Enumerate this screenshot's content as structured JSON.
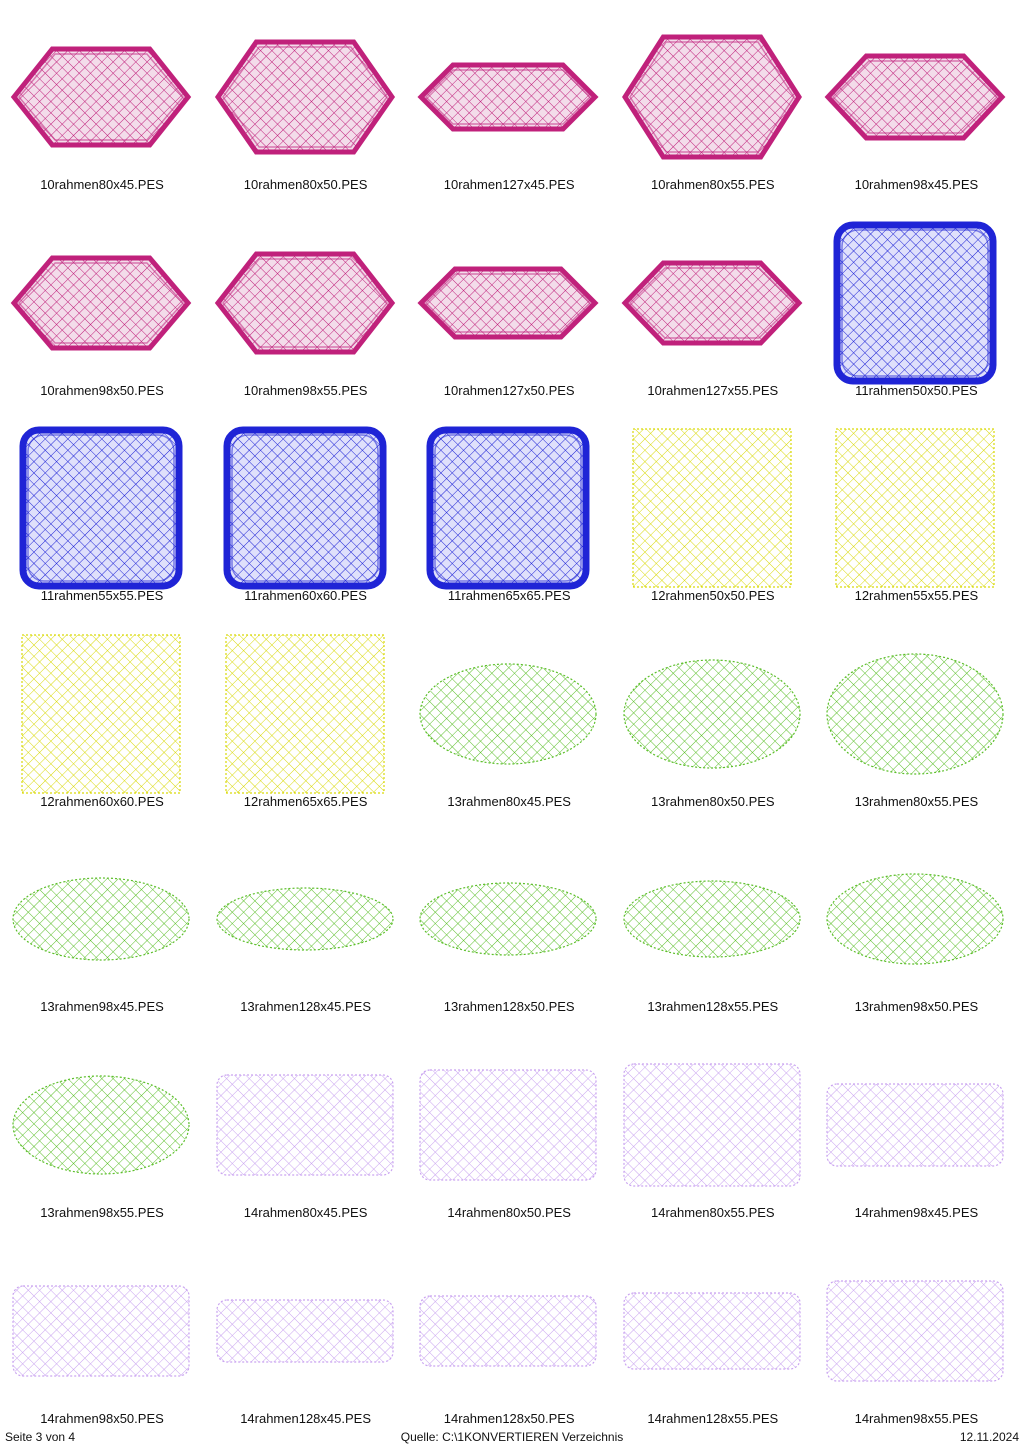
{
  "colors": {
    "magenta": "#c0217b",
    "magenta_fill": "#f3dcea",
    "blue": "#1f24d6",
    "blue_fill": "#dfe0fb",
    "yellow": "#d9d90a",
    "green": "#5cbf2a",
    "lavender": "#c9a3f0"
  },
  "items": [
    {
      "name": "10rahmen80x45.PES",
      "shape": "hexagon",
      "color": "magenta"
    },
    {
      "name": "10rahmen80x50.PES",
      "shape": "hexagon",
      "color": "magenta"
    },
    {
      "name": "10rahmen127x45.PES",
      "shape": "hexagon",
      "color": "magenta"
    },
    {
      "name": "10rahmen80x55.PES",
      "shape": "hexagon",
      "color": "magenta"
    },
    {
      "name": "10rahmen98x45.PES",
      "shape": "hexagon",
      "color": "magenta"
    },
    {
      "name": "10rahmen98x50.PES",
      "shape": "hexagon",
      "color": "magenta"
    },
    {
      "name": "10rahmen98x55.PES",
      "shape": "hexagon",
      "color": "magenta"
    },
    {
      "name": "10rahmen127x50.PES",
      "shape": "hexagon",
      "color": "magenta"
    },
    {
      "name": "10rahmen127x55.PES",
      "shape": "hexagon",
      "color": "magenta"
    },
    {
      "name": "11rahmen50x50.PES",
      "shape": "rounded-square",
      "color": "blue"
    },
    {
      "name": "11rahmen55x55.PES",
      "shape": "rounded-square",
      "color": "blue"
    },
    {
      "name": "11rahmen60x60.PES",
      "shape": "rounded-square",
      "color": "blue"
    },
    {
      "name": "11rahmen65x65.PES",
      "shape": "rounded-square",
      "color": "blue"
    },
    {
      "name": "12rahmen50x50.PES",
      "shape": "square",
      "color": "yellow"
    },
    {
      "name": "12rahmen55x55.PES",
      "shape": "square",
      "color": "yellow"
    },
    {
      "name": "12rahmen60x60.PES",
      "shape": "square",
      "color": "yellow"
    },
    {
      "name": "12rahmen65x65.PES",
      "shape": "square",
      "color": "yellow"
    },
    {
      "name": "13rahmen80x45.PES",
      "shape": "ellipse",
      "color": "green"
    },
    {
      "name": "13rahmen80x50.PES",
      "shape": "ellipse",
      "color": "green"
    },
    {
      "name": "13rahmen80x55.PES",
      "shape": "ellipse",
      "color": "green"
    },
    {
      "name": "13rahmen98x45.PES",
      "shape": "ellipse",
      "color": "green"
    },
    {
      "name": "13rahmen128x45.PES",
      "shape": "ellipse",
      "color": "green"
    },
    {
      "name": "13rahmen128x50.PES",
      "shape": "ellipse",
      "color": "green"
    },
    {
      "name": "13rahmen128x55.PES",
      "shape": "ellipse",
      "color": "green"
    },
    {
      "name": "13rahmen98x50.PES",
      "shape": "ellipse",
      "color": "green"
    },
    {
      "name": "13rahmen98x55.PES",
      "shape": "ellipse",
      "color": "green"
    },
    {
      "name": "14rahmen80x45.PES",
      "shape": "rounded-rect",
      "color": "lavender"
    },
    {
      "name": "14rahmen80x50.PES",
      "shape": "rounded-rect",
      "color": "lavender"
    },
    {
      "name": "14rahmen80x55.PES",
      "shape": "rounded-rect",
      "color": "lavender"
    },
    {
      "name": "14rahmen98x45.PES",
      "shape": "rounded-rect",
      "color": "lavender"
    },
    {
      "name": "14rahmen98x50.PES",
      "shape": "rounded-rect",
      "color": "lavender"
    },
    {
      "name": "14rahmen128x45.PES",
      "shape": "rounded-rect",
      "color": "lavender"
    },
    {
      "name": "14rahmen128x50.PES",
      "shape": "rounded-rect",
      "color": "lavender"
    },
    {
      "name": "14rahmen128x55.PES",
      "shape": "rounded-rect",
      "color": "lavender"
    },
    {
      "name": "14rahmen98x55.PES",
      "shape": "rounded-rect",
      "color": "lavender"
    }
  ],
  "footer": {
    "page": "Seite 3 von 4",
    "source": "Quelle: C:\\1KONVERTIEREN Verzeichnis",
    "date": "12.11.2024"
  }
}
